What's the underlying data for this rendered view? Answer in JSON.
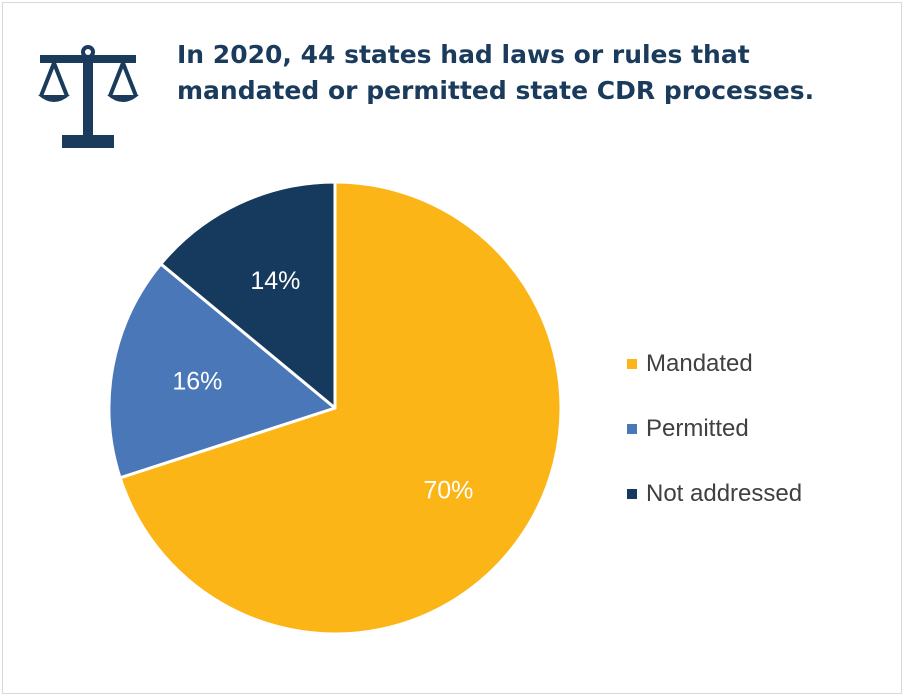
{
  "title": {
    "line1": "In 2020, 44 states had laws or rules that",
    "line2": "mandated or permitted state CDR processes."
  },
  "icon": "scales-of-justice-icon",
  "colors": {
    "title": "#1a3b5c",
    "icon": "#1a3b5c"
  },
  "chart_data": {
    "type": "pie",
    "title": "",
    "slices": [
      {
        "name": "Mandated",
        "value": 70,
        "label": "70%",
        "color": "#fbb516"
      },
      {
        "name": "Permitted",
        "value": 16,
        "label": "16%",
        "color": "#4a77b8"
      },
      {
        "name": "Not addressed",
        "value": 14,
        "label": "14%",
        "color": "#163a5e"
      }
    ],
    "start_angle": "12 o'clock",
    "direction": "clockwise",
    "legend_placement": "right"
  }
}
